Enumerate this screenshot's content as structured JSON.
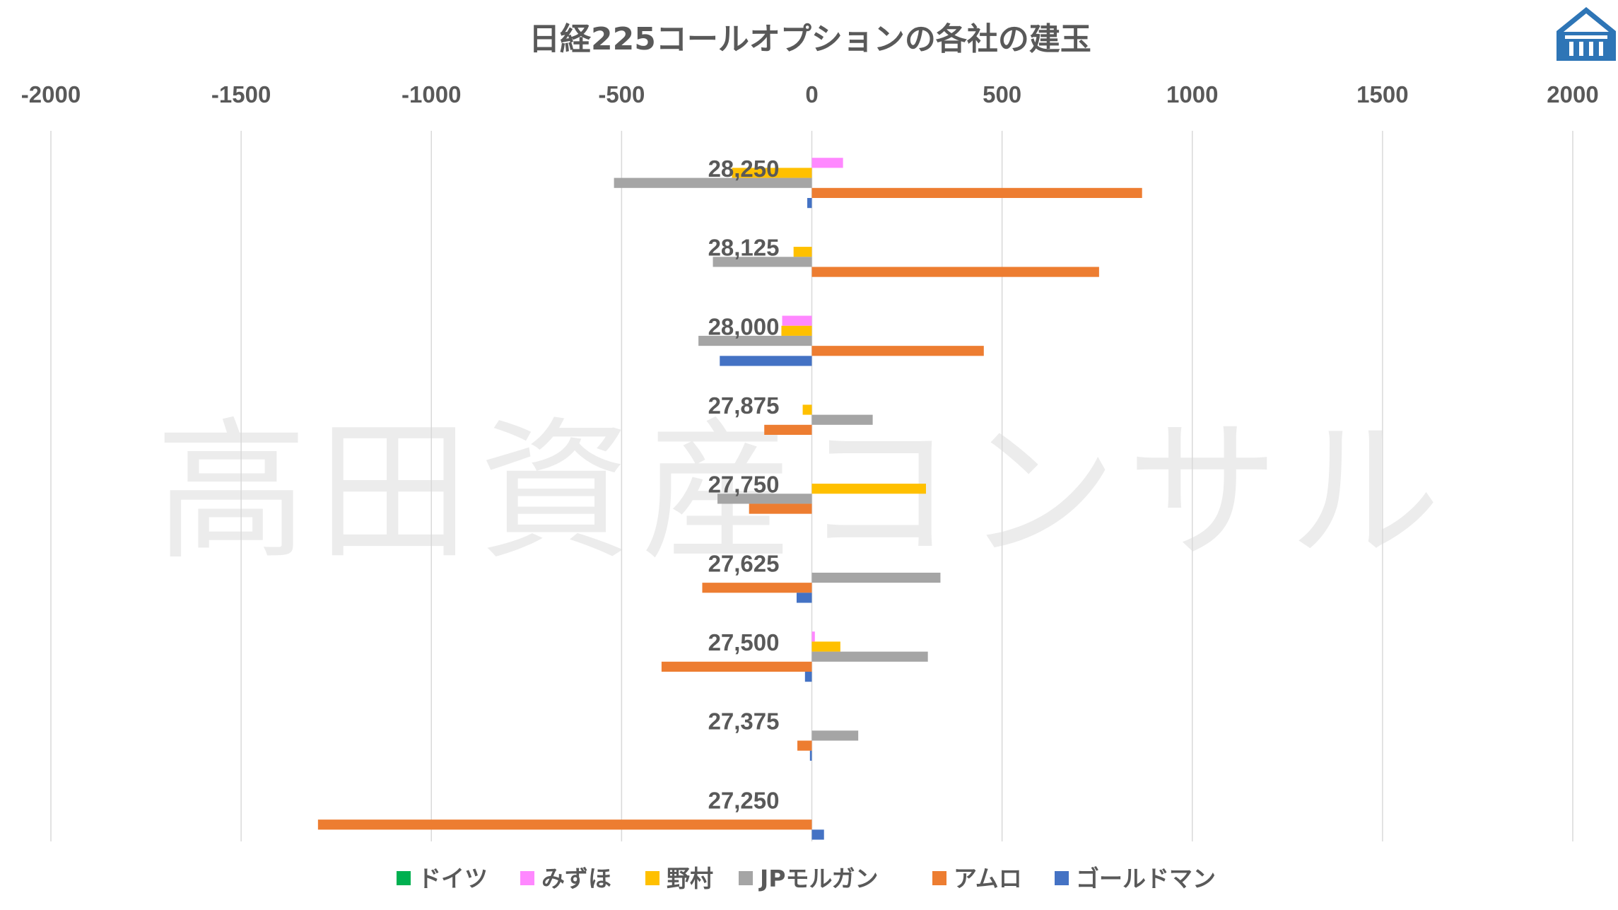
{
  "watermark": "高田資産コンサル",
  "logo": {
    "icon": "house-pillars-logo-icon",
    "color": "#2e75b6"
  },
  "chart_data": {
    "type": "bar",
    "orientation": "horizontal",
    "title": "日経225コールオプションの各社の建玉",
    "xlabel": "",
    "ylabel": "",
    "xlim": [
      -2000,
      2000
    ],
    "xticks": [
      -2000,
      -1500,
      -1000,
      -500,
      0,
      500,
      1000,
      1500,
      2000
    ],
    "xticks_labels": [
      "-2000",
      "-1500",
      "-1000",
      "-500",
      "0",
      "500",
      "1000",
      "1500",
      "2000"
    ],
    "grid": "vertical",
    "legend_position": "bottom",
    "categories": [
      "28,250",
      "28,125",
      "28,000",
      "27,875",
      "27,750",
      "27,625",
      "27,500",
      "27,375",
      "27,250"
    ],
    "series": [
      {
        "name": "ドイツ",
        "color": "#00b050",
        "values": [
          0,
          0,
          0,
          0,
          0,
          0,
          0,
          0,
          0
        ]
      },
      {
        "name": "みずほ",
        "color": "#ff88ff",
        "values": [
          82,
          0,
          -78,
          0,
          0,
          0,
          8,
          0,
          0
        ]
      },
      {
        "name": "野村",
        "color": "#ffc000",
        "values": [
          -210,
          -48,
          -80,
          -24,
          300,
          0,
          75,
          0,
          0
        ]
      },
      {
        "name": "JPモルガン",
        "color": "#a5a5a5",
        "values": [
          -520,
          -260,
          -298,
          160,
          -248,
          338,
          305,
          122,
          0
        ]
      },
      {
        "name": "アムロ",
        "color": "#ed7d31",
        "values": [
          868,
          755,
          452,
          -125,
          -165,
          -288,
          -395,
          -38,
          -1298
        ]
      },
      {
        "name": "ゴールドマン",
        "color": "#4472c4",
        "values": [
          -12,
          0,
          -242,
          0,
          0,
          -40,
          -18,
          -5,
          32
        ]
      }
    ]
  }
}
